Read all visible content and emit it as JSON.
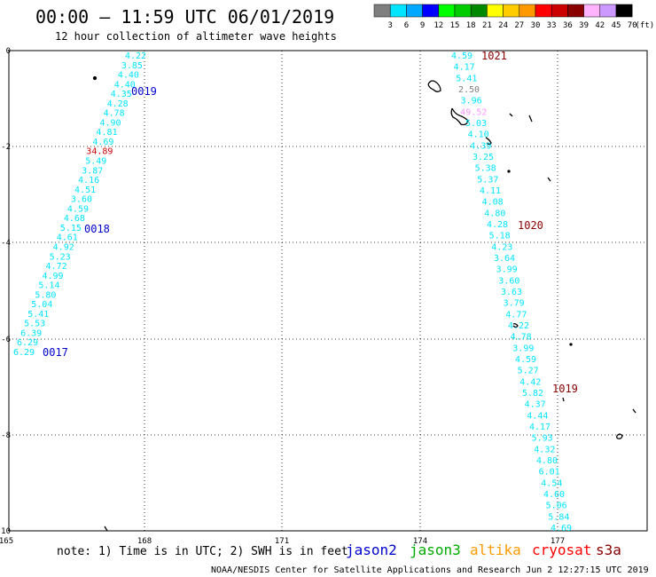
{
  "title": "00:00 – 11:59 UTC 06/01/2019",
  "subtitle": "12 hour collection of altimeter wave heights",
  "legend": {
    "labels": [
      "3",
      "6",
      "9",
      "12",
      "15",
      "18",
      "21",
      "24",
      "27",
      "30",
      "33",
      "36",
      "39",
      "42",
      "45",
      "70",
      "(ft)"
    ],
    "colors": [
      "#7f7f7f",
      "#00e5ff",
      "#00a9ff",
      "#0000ff",
      "#00ff00",
      "#00cc00",
      "#008800",
      "#ffff00",
      "#ffcc00",
      "#ff9900",
      "#ff0000",
      "#cc0000",
      "#880000",
      "#ffb3ff",
      "#cc99ff",
      "#000000"
    ]
  },
  "axes": {
    "x_ticks": [
      "165",
      "168",
      "171",
      "174",
      "177"
    ],
    "y_ticks": [
      "0",
      "-2",
      "-4",
      "-6",
      "-8",
      "-10"
    ]
  },
  "colors": {
    "cyan": "#00e5ff",
    "red": "#cc0000",
    "darkred": "#880000",
    "blue": "#0000cc",
    "gray": "#7f7f7f",
    "pink": "#ff99ff"
  },
  "tracks": [
    {
      "id": "left-track",
      "passes": [
        "0019",
        "0018",
        "0017"
      ],
      "readings": [
        "4.22",
        "3.85",
        "4.40",
        "4.40",
        "4.35",
        "4.28",
        "4.78",
        "4.90",
        "4.81",
        "4.69",
        "34.89",
        "5.49",
        "3.87",
        "4.16",
        "4.51",
        "3.60",
        "4.59",
        "4.68",
        "5.15",
        "4.61",
        "4.92",
        "5.23",
        "4.72",
        "4.99",
        "5.14",
        "5.80",
        "5.04",
        "5.41",
        "5.53",
        "6.39",
        "6.29",
        "6.29"
      ]
    },
    {
      "id": "right-track",
      "passes": [
        "1021",
        "1020",
        "1019"
      ],
      "readings": [
        "4.59",
        "4.17",
        "5.41",
        "2.50",
        "3.96",
        "49.52",
        "5.03",
        "4.10",
        "4.39",
        "3.25",
        "5.38",
        "5.37",
        "4.11",
        "4.08",
        "4.80",
        "4.28",
        "5.18",
        "4.23",
        "3.64",
        "3.99",
        "3.60",
        "3.63",
        "3.79",
        "4.77",
        "4.22",
        "4.78",
        "3.99",
        "4.59",
        "5.27",
        "4.42",
        "5.82",
        "4.37",
        "4.44",
        "4.17",
        "5.93",
        "4.32",
        "4.80",
        "6.01",
        "4.54",
        "4.60",
        "5.06",
        "5.84",
        "4.69"
      ]
    }
  ],
  "footer": {
    "note": "note: 1) Time is in UTC; 2) SWH is in feet",
    "satellites": [
      {
        "name": "jason2",
        "color": "#0000cc"
      },
      {
        "name": "jason3",
        "color": "#00aa00"
      },
      {
        "name": "altika",
        "color": "#ff9900"
      },
      {
        "name": "cryosat",
        "color": "#ff0000"
      },
      {
        "name": "s3a",
        "color": "#880000"
      }
    ],
    "credit": "NOAA/NESDIS Center for Satellite Applications and Research    Jun  2 12:27:15 UTC 2019"
  }
}
